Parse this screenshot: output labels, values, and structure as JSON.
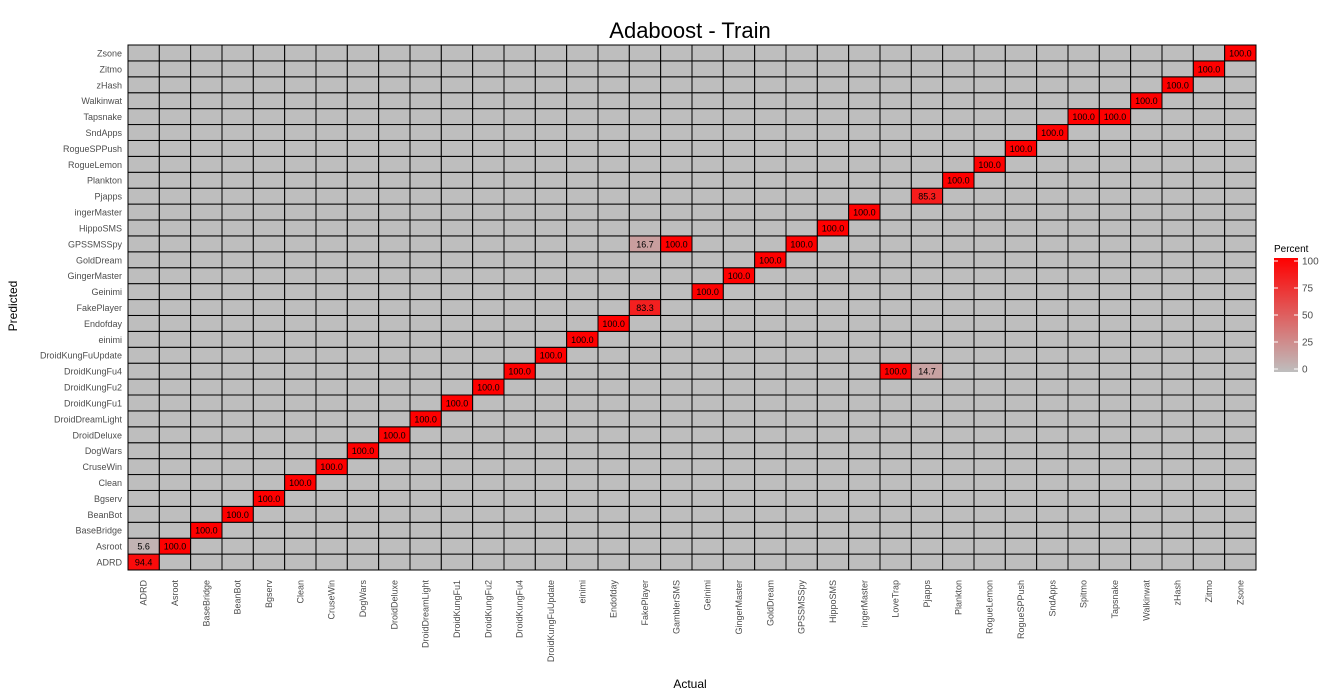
{
  "chart_data": {
    "type": "heatmap",
    "title": "Adaboost - Train",
    "xlabel": "Actual",
    "ylabel": "Predicted",
    "x_categories": [
      "ADRD",
      "Asroot",
      "BaseBridge",
      "BeanBot",
      "Bgserv",
      "Clean",
      "CruseWin",
      "DogWars",
      "DroidDeluxe",
      "DroidDreamLight",
      "DroidKungFu1",
      "DroidKungFu2",
      "DroidKungFu4",
      "DroidKungFuUpdate",
      "einimi",
      "Endofday",
      "FakePlayer",
      "GamblerSMS",
      "Geinimi",
      "GingerMaster",
      "GoldDream",
      "GPSSMSSpy",
      "HippoSMS",
      "ingerMaster",
      "LoveTrap",
      "Pjapps",
      "Plankton",
      "RogueLemon",
      "RogueSPPush",
      "SndApps",
      "Spitmo",
      "Tapsnake",
      "Walkinwat",
      "zHash",
      "Zitmo",
      "Zsone"
    ],
    "y_categories": [
      "ADRD",
      "Asroot",
      "BaseBridge",
      "BeanBot",
      "Bgserv",
      "Clean",
      "CruseWin",
      "DogWars",
      "DroidDeluxe",
      "DroidDreamLight",
      "DroidKungFu1",
      "DroidKungFu2",
      "DroidKungFu4",
      "DroidKungFuUpdate",
      "einimi",
      "Endofday",
      "FakePlayer",
      "Geinimi",
      "GingerMaster",
      "GoldDream",
      "GPSSMSSpy",
      "HippoSMS",
      "ingerMaster",
      "Pjapps",
      "Plankton",
      "RogueLemon",
      "RogueSPPush",
      "SndApps",
      "Tapsnake",
      "Walkinwat",
      "zHash",
      "Zitmo",
      "Zsone"
    ],
    "cells": [
      {
        "x": "ADRD",
        "y": "ADRD",
        "value": 94.4,
        "label": "94.4"
      },
      {
        "x": "ADRD",
        "y": "Asroot",
        "value": 5.6,
        "label": "5.6"
      },
      {
        "x": "Asroot",
        "y": "Asroot",
        "value": 100,
        "label": "100.0"
      },
      {
        "x": "BaseBridge",
        "y": "BaseBridge",
        "value": 100,
        "label": "100.0"
      },
      {
        "x": "BeanBot",
        "y": "BeanBot",
        "value": 100,
        "label": "100.0"
      },
      {
        "x": "Bgserv",
        "y": "Bgserv",
        "value": 100,
        "label": "100.0"
      },
      {
        "x": "Clean",
        "y": "Clean",
        "value": 100,
        "label": "100.0"
      },
      {
        "x": "CruseWin",
        "y": "CruseWin",
        "value": 100,
        "label": "100.0"
      },
      {
        "x": "DogWars",
        "y": "DogWars",
        "value": 100,
        "label": "100.0"
      },
      {
        "x": "DroidDeluxe",
        "y": "DroidDeluxe",
        "value": 100,
        "label": "100.0"
      },
      {
        "x": "DroidDreamLight",
        "y": "DroidDreamLight",
        "value": 100,
        "label": "100.0"
      },
      {
        "x": "DroidKungFu1",
        "y": "DroidKungFu1",
        "value": 100,
        "label": "100.0"
      },
      {
        "x": "DroidKungFu2",
        "y": "DroidKungFu2",
        "value": 100,
        "label": "100.0"
      },
      {
        "x": "DroidKungFu4",
        "y": "DroidKungFu4",
        "value": 100,
        "label": "100.0"
      },
      {
        "x": "DroidKungFuUpdate",
        "y": "DroidKungFuUpdate",
        "value": 100,
        "label": "100.0"
      },
      {
        "x": "einimi",
        "y": "einimi",
        "value": 100,
        "label": "100.0"
      },
      {
        "x": "Endofday",
        "y": "Endofday",
        "value": 100,
        "label": "100.0"
      },
      {
        "x": "FakePlayer",
        "y": "FakePlayer",
        "value": 83.3,
        "label": "83.3"
      },
      {
        "x": "FakePlayer",
        "y": "GPSSMSSpy",
        "value": 16.7,
        "label": "16.7"
      },
      {
        "x": "GamblerSMS",
        "y": "GPSSMSSpy",
        "value": 100,
        "label": "100.0"
      },
      {
        "x": "Geinimi",
        "y": "Geinimi",
        "value": 100,
        "label": "100.0"
      },
      {
        "x": "GingerMaster",
        "y": "GingerMaster",
        "value": 100,
        "label": "100.0"
      },
      {
        "x": "GoldDream",
        "y": "GoldDream",
        "value": 100,
        "label": "100.0"
      },
      {
        "x": "GPSSMSSpy",
        "y": "GPSSMSSpy",
        "value": 100,
        "label": "100.0"
      },
      {
        "x": "HippoSMS",
        "y": "HippoSMS",
        "value": 100,
        "label": "100.0"
      },
      {
        "x": "ingerMaster",
        "y": "ingerMaster",
        "value": 100,
        "label": "100.0"
      },
      {
        "x": "LoveTrap",
        "y": "DroidKungFu4",
        "value": 100,
        "label": "100.0"
      },
      {
        "x": "Pjapps",
        "y": "Pjapps",
        "value": 85.3,
        "label": "85.3"
      },
      {
        "x": "Pjapps",
        "y": "DroidKungFu4",
        "value": 14.7,
        "label": "14.7"
      },
      {
        "x": "Plankton",
        "y": "Plankton",
        "value": 100,
        "label": "100.0"
      },
      {
        "x": "RogueLemon",
        "y": "RogueLemon",
        "value": 100,
        "label": "100.0"
      },
      {
        "x": "RogueSPPush",
        "y": "RogueSPPush",
        "value": 100,
        "label": "100.0"
      },
      {
        "x": "SndApps",
        "y": "SndApps",
        "value": 100,
        "label": "100.0"
      },
      {
        "x": "Spitmo",
        "y": "Tapsnake",
        "value": 100,
        "label": "100.0"
      },
      {
        "x": "Tapsnake",
        "y": "Tapsnake",
        "value": 100,
        "label": "100.0"
      },
      {
        "x": "Walkinwat",
        "y": "Walkinwat",
        "value": 100,
        "label": "100.0"
      },
      {
        "x": "zHash",
        "y": "zHash",
        "value": 100,
        "label": "100.0"
      },
      {
        "x": "Zitmo",
        "y": "Zitmo",
        "value": 100,
        "label": "100.0"
      },
      {
        "x": "Zsone",
        "y": "Zsone",
        "value": 100,
        "label": "100.0"
      }
    ],
    "legend": {
      "title": "Percent",
      "ticks": [
        0,
        25,
        50,
        75,
        100
      ],
      "low_color": "#bebebe",
      "high_color": "#ff0000",
      "placement": "right"
    },
    "empty_cell_color": "#bebebe",
    "grid": true,
    "zlim": [
      0,
      100
    ]
  }
}
